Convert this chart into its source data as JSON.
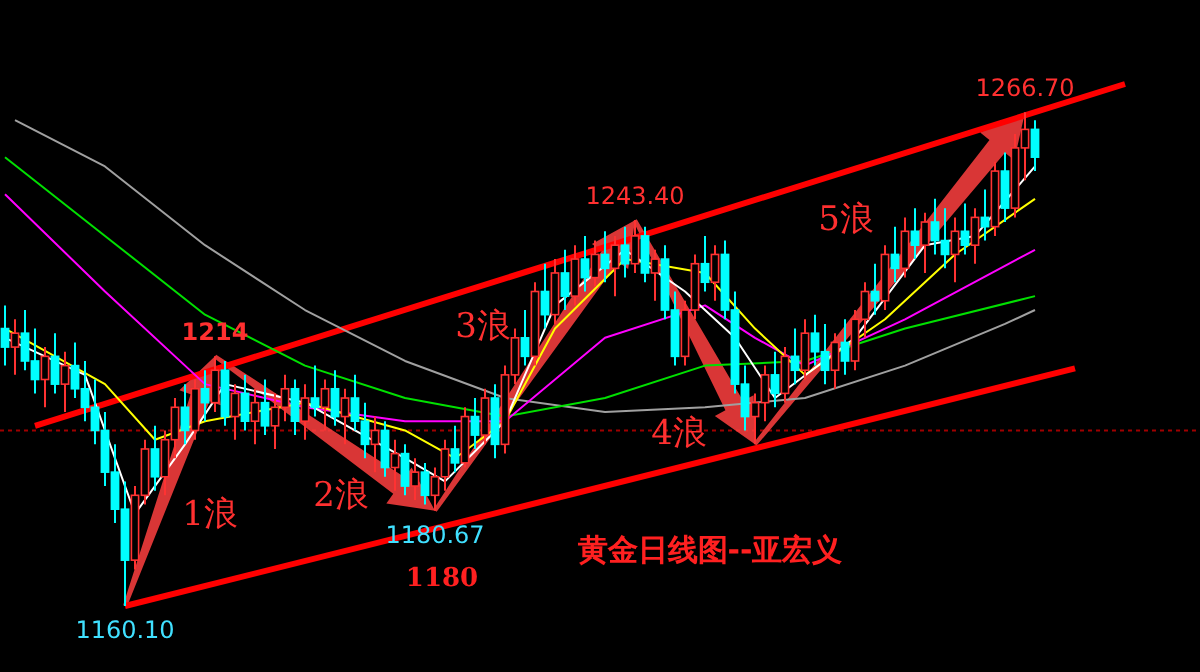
{
  "chart_data": {
    "type": "candlestick",
    "title": "黄金日线图--亚宏义",
    "categories": [
      null,
      null,
      null,
      null,
      null,
      null,
      null,
      null,
      null,
      null,
      null,
      null,
      null,
      null,
      null,
      null,
      null,
      null,
      null,
      null,
      null,
      null,
      null,
      null,
      null,
      null,
      null,
      null,
      null,
      null,
      null,
      null,
      null,
      null,
      null,
      null,
      null,
      null,
      null,
      null,
      null,
      null,
      null,
      null,
      null,
      null,
      null,
      null,
      null,
      null,
      null,
      null,
      null,
      null,
      null,
      null,
      null,
      null,
      null,
      null,
      null,
      null,
      null,
      null,
      null,
      null,
      null,
      null,
      null,
      null,
      null,
      null,
      null,
      null,
      null,
      null,
      null,
      null,
      null,
      null,
      null,
      null,
      null,
      null,
      null,
      null,
      null,
      null,
      null,
      null,
      null,
      null,
      null,
      null,
      null,
      null,
      null,
      null,
      null,
      null,
      null,
      null,
      null,
      null,
      null,
      null,
      null,
      null,
      null,
      null,
      null,
      null,
      null
    ],
    "colors": [
      "#00ffff",
      "#ff3232",
      "#00ffff",
      "#00ffff",
      "#ff3232",
      "#00ffff",
      "#ff3232",
      "#00ffff",
      "#00ffff",
      "#00ffff",
      "#00ffff",
      "#00ffff",
      "#00ffff",
      "#ff3232",
      "#ff3232",
      "#00ffff",
      "#ff3232",
      "#ff3232",
      "#00ffff",
      "#ff3232",
      "#00ffff",
      "#ff3232",
      "#00ffff",
      "#ff3232",
      "#00ffff",
      "#ff3232",
      "#00ffff",
      "#ff3232",
      "#ff3232",
      "#00ffff",
      "#ff3232",
      "#00ffff",
      "#ff3232",
      "#00ffff",
      "#ff3232",
      "#00ffff",
      "#00ffff",
      "#ff3232",
      "#00ffff",
      "#ff3232",
      "#00ffff",
      "#ff3232",
      "#00ffff",
      "#ff3232",
      "#ff3232",
      "#00ffff",
      "#ff3232",
      "#00ffff",
      "#ff3232",
      "#00ffff",
      "#ff3232",
      "#ff3232",
      "#00ffff",
      "#ff3232",
      "#00ffff",
      "#ff3232",
      "#00ffff",
      "#ff3232",
      "#00ffff",
      "#ff3232",
      "#00ffff",
      "#ff3232",
      "#00ffff",
      "#ff3232",
      "#00ffff",
      "#ff3232",
      "#00ffff",
      "#00ffff",
      "#ff3232",
      "#ff3232",
      "#00ffff",
      "#ff3232",
      "#00ffff",
      "#00ffff",
      "#00ffff",
      "#ff3232",
      "#ff3232",
      "#00ffff",
      "#ff3232",
      "#00ffff",
      "#ff3232",
      "#00ffff",
      "#00ffff",
      "#ff3232",
      "#00ffff",
      "#ff3232",
      "#ff3232",
      "#00ffff",
      "#ff3232",
      "#00ffff",
      "#ff3232",
      "#00ffff",
      "#ff3232",
      "#00ffff",
      "#00ffff",
      "#ff3232",
      "#00ffff",
      "#ff3232",
      "#00ffff",
      "#ff3232",
      "#00ffff",
      "#ff3232",
      "#ff3232",
      "#00ffff",
      null,
      null,
      null,
      null,
      null,
      null,
      null,
      null,
      null
    ],
    "ohlc": [
      [
        1220,
        1225,
        1212,
        1216
      ],
      [
        1216,
        1222,
        1210,
        1219
      ],
      [
        1219,
        1224,
        1211,
        1213
      ],
      [
        1213,
        1220,
        1206,
        1209
      ],
      [
        1209,
        1216,
        1203,
        1214
      ],
      [
        1214,
        1219,
        1206,
        1208
      ],
      [
        1208,
        1215,
        1202,
        1212
      ],
      [
        1212,
        1217,
        1205,
        1207
      ],
      [
        1207,
        1213,
        1200,
        1203
      ],
      [
        1203,
        1209,
        1195,
        1198
      ],
      [
        1198,
        1202,
        1186,
        1189
      ],
      [
        1189,
        1195,
        1178,
        1181
      ],
      [
        1181,
        1187,
        1160.1,
        1170
      ],
      [
        1170,
        1186,
        1168,
        1184
      ],
      [
        1184,
        1196,
        1182,
        1194
      ],
      [
        1194,
        1199,
        1185,
        1188
      ],
      [
        1188,
        1198,
        1184,
        1196
      ],
      [
        1196,
        1205,
        1192,
        1203
      ],
      [
        1203,
        1208,
        1195,
        1198
      ],
      [
        1198,
        1209,
        1196,
        1207
      ],
      [
        1207,
        1211,
        1200,
        1204
      ],
      [
        1204,
        1214,
        1202,
        1211
      ],
      [
        1211,
        1213,
        1199,
        1201
      ],
      [
        1201,
        1208,
        1196,
        1206
      ],
      [
        1206,
        1210,
        1198,
        1200
      ],
      [
        1200,
        1207,
        1195,
        1204
      ],
      [
        1204,
        1209,
        1197,
        1199
      ],
      [
        1199,
        1206,
        1194,
        1203
      ],
      [
        1203,
        1210,
        1200,
        1207
      ],
      [
        1207,
        1209,
        1197,
        1200
      ],
      [
        1200,
        1208,
        1196,
        1205
      ],
      [
        1205,
        1212,
        1201,
        1203
      ],
      [
        1203,
        1209,
        1198,
        1207
      ],
      [
        1207,
        1211,
        1199,
        1201
      ],
      [
        1201,
        1207,
        1195,
        1205
      ],
      [
        1205,
        1210,
        1198,
        1200
      ],
      [
        1200,
        1204,
        1192,
        1195
      ],
      [
        1195,
        1201,
        1189,
        1198
      ],
      [
        1198,
        1200,
        1188,
        1190
      ],
      [
        1190,
        1196,
        1185,
        1193
      ],
      [
        1193,
        1195,
        1184,
        1186
      ],
      [
        1186,
        1192,
        1183,
        1189
      ],
      [
        1189,
        1191,
        1182,
        1184
      ],
      [
        1184,
        1190,
        1180.67,
        1188
      ],
      [
        1188,
        1196,
        1185,
        1194
      ],
      [
        1194,
        1199,
        1189,
        1191
      ],
      [
        1191,
        1203,
        1190,
        1201
      ],
      [
        1201,
        1205,
        1194,
        1197
      ],
      [
        1197,
        1207,
        1195,
        1205
      ],
      [
        1205,
        1208,
        1192,
        1195
      ],
      [
        1195,
        1212,
        1193,
        1210
      ],
      [
        1210,
        1220,
        1208,
        1218
      ],
      [
        1218,
        1224,
        1212,
        1214
      ],
      [
        1214,
        1230,
        1212,
        1228
      ],
      [
        1228,
        1234,
        1220,
        1223
      ],
      [
        1223,
        1235,
        1221,
        1232
      ],
      [
        1232,
        1237,
        1224,
        1227
      ],
      [
        1227,
        1238,
        1225,
        1235
      ],
      [
        1235,
        1240,
        1228,
        1231
      ],
      [
        1231,
        1239,
        1229,
        1236
      ],
      [
        1236,
        1241,
        1230,
        1233
      ],
      [
        1233,
        1240,
        1227,
        1238
      ],
      [
        1238,
        1242,
        1231,
        1234
      ],
      [
        1234,
        1243.4,
        1232,
        1240
      ],
      [
        1240,
        1242,
        1230,
        1232
      ],
      [
        1232,
        1237,
        1226,
        1235
      ],
      [
        1235,
        1238,
        1222,
        1224
      ],
      [
        1224,
        1228,
        1212,
        1214
      ],
      [
        1214,
        1226,
        1212,
        1224
      ],
      [
        1224,
        1236,
        1222,
        1234
      ],
      [
        1234,
        1240,
        1228,
        1230
      ],
      [
        1230,
        1238,
        1226,
        1236
      ],
      [
        1236,
        1239,
        1222,
        1224
      ],
      [
        1224,
        1228,
        1206,
        1208
      ],
      [
        1208,
        1212,
        1198,
        1201
      ],
      [
        1201,
        1206,
        1195,
        1204
      ],
      [
        1204,
        1212,
        1200,
        1210
      ],
      [
        1210,
        1215,
        1203,
        1206
      ],
      [
        1206,
        1216,
        1204,
        1214
      ],
      [
        1214,
        1220,
        1208,
        1211
      ],
      [
        1211,
        1222,
        1209,
        1219
      ],
      [
        1219,
        1223,
        1212,
        1215
      ],
      [
        1215,
        1221,
        1208,
        1211
      ],
      [
        1211,
        1219,
        1207,
        1217
      ],
      [
        1217,
        1222,
        1210,
        1213
      ],
      [
        1213,
        1224,
        1211,
        1222
      ],
      [
        1222,
        1230,
        1218,
        1228
      ],
      [
        1228,
        1234,
        1223,
        1226
      ],
      [
        1226,
        1238,
        1224,
        1236
      ],
      [
        1236,
        1242,
        1230,
        1233
      ],
      [
        1233,
        1244,
        1231,
        1241
      ],
      [
        1241,
        1246,
        1235,
        1238
      ],
      [
        1238,
        1245,
        1232,
        1243
      ],
      [
        1243,
        1248,
        1236,
        1239
      ],
      [
        1239,
        1246,
        1233,
        1236
      ],
      [
        1236,
        1244,
        1230,
        1241
      ],
      [
        1241,
        1247,
        1236,
        1238
      ],
      [
        1238,
        1246,
        1234,
        1244
      ],
      [
        1244,
        1250,
        1239,
        1242
      ],
      [
        1242,
        1256,
        1240,
        1254
      ],
      [
        1254,
        1258,
        1243,
        1246
      ],
      [
        1246,
        1262,
        1244,
        1259
      ],
      [
        1259,
        1266.7,
        1252,
        1263
      ],
      [
        1263,
        1265,
        1254,
        1257
      ],
      null,
      null,
      null,
      null,
      null,
      null,
      null,
      null,
      null
    ],
    "series": [
      {
        "type": "line",
        "color": "#a0a0a0",
        "values": [
          null,
          1265,
          null,
          null,
          null,
          null,
          null,
          null,
          null,
          null,
          1255,
          null,
          null,
          null,
          null,
          null,
          null,
          null,
          null,
          null,
          1238,
          null,
          null,
          null,
          null,
          null,
          null,
          null,
          null,
          null,
          1224,
          null,
          null,
          null,
          null,
          null,
          null,
          null,
          null,
          null,
          1213,
          null,
          null,
          null,
          null,
          null,
          null,
          null,
          null,
          null,
          1205,
          null,
          null,
          null,
          null,
          null,
          null,
          null,
          null,
          null,
          1202,
          null,
          null,
          null,
          null,
          null,
          null,
          null,
          null,
          null,
          1203,
          null,
          null,
          null,
          null,
          null,
          null,
          null,
          null,
          null,
          1205,
          null,
          null,
          null,
          null,
          null,
          null,
          null,
          null,
          null,
          1212,
          null,
          null,
          null,
          null,
          null,
          null,
          null,
          null,
          null,
          1221,
          null,
          null,
          1224,
          null,
          null,
          null,
          null,
          null,
          null,
          null,
          null,
          null
        ]
      },
      {
        "type": "line",
        "color": "#00e000",
        "values": [
          1257,
          null,
          null,
          null,
          null,
          null,
          null,
          null,
          null,
          null,
          1240,
          null,
          null,
          null,
          null,
          null,
          null,
          null,
          null,
          null,
          1223,
          null,
          null,
          null,
          null,
          null,
          null,
          null,
          null,
          null,
          1212,
          null,
          null,
          null,
          null,
          null,
          null,
          null,
          null,
          null,
          1205,
          null,
          null,
          null,
          null,
          null,
          null,
          null,
          null,
          null,
          1201,
          null,
          null,
          null,
          null,
          null,
          null,
          null,
          null,
          null,
          1205,
          null,
          null,
          null,
          null,
          null,
          null,
          null,
          null,
          null,
          1212,
          null,
          null,
          null,
          null,
          null,
          null,
          null,
          null,
          null,
          1213,
          null,
          null,
          null,
          null,
          null,
          null,
          null,
          null,
          null,
          1220,
          null,
          null,
          null,
          null,
          null,
          null,
          null,
          null,
          null,
          null,
          null,
          null,
          1227,
          null,
          null,
          null,
          null,
          null,
          null,
          null,
          null,
          null
        ]
      },
      {
        "type": "line",
        "color": "#ff00ff",
        "values": [
          1249,
          null,
          null,
          null,
          null,
          null,
          null,
          null,
          null,
          null,
          1228,
          null,
          null,
          null,
          null,
          null,
          null,
          null,
          null,
          null,
          1208,
          null,
          null,
          null,
          null,
          null,
          null,
          null,
          null,
          null,
          1203,
          null,
          null,
          null,
          null,
          null,
          null,
          null,
          null,
          null,
          1200,
          null,
          null,
          null,
          null,
          null,
          null,
          null,
          null,
          null,
          1200,
          null,
          null,
          null,
          null,
          null,
          null,
          null,
          null,
          null,
          1218,
          null,
          null,
          null,
          null,
          null,
          null,
          null,
          null,
          null,
          1225,
          null,
          null,
          null,
          null,
          1218,
          null,
          null,
          null,
          null,
          1212,
          null,
          null,
          null,
          null,
          null,
          null,
          null,
          null,
          null,
          1222,
          null,
          null,
          null,
          null,
          null,
          null,
          null,
          null,
          null,
          null,
          null,
          null,
          1237,
          null,
          null,
          null,
          null,
          null,
          null,
          null,
          null,
          null
        ]
      },
      {
        "type": "line",
        "color": "#ffff00",
        "values": [
          1220,
          null,
          null,
          null,
          null,
          null,
          null,
          null,
          null,
          null,
          1208,
          null,
          null,
          null,
          null,
          1196,
          null,
          null,
          null,
          null,
          1200,
          null,
          null,
          null,
          null,
          null,
          null,
          null,
          null,
          null,
          1204,
          null,
          null,
          null,
          null,
          null,
          null,
          null,
          null,
          null,
          1198,
          null,
          null,
          null,
          null,
          1192,
          null,
          null,
          null,
          null,
          1200,
          null,
          null,
          null,
          null,
          1220,
          null,
          null,
          null,
          null,
          null,
          null,
          1235,
          null,
          null,
          null,
          null,
          null,
          null,
          null,
          1232,
          null,
          null,
          null,
          null,
          1220,
          null,
          null,
          null,
          null,
          1210,
          null,
          null,
          null,
          null,
          null,
          null,
          null,
          1222,
          null,
          null,
          null,
          null,
          null,
          null,
          1236,
          null,
          null,
          null,
          null,
          null,
          null,
          null,
          1248,
          null,
          null,
          null,
          null,
          null,
          null,
          null,
          null,
          null
        ]
      },
      {
        "type": "line",
        "color": "#ffffff",
        "values": [
          1218,
          null,
          null,
          null,
          null,
          null,
          null,
          null,
          1210,
          null,
          null,
          null,
          null,
          1180,
          null,
          null,
          null,
          null,
          1195,
          null,
          null,
          null,
          1208,
          null,
          null,
          null,
          null,
          null,
          null,
          null,
          1204,
          null,
          null,
          null,
          null,
          null,
          null,
          null,
          null,
          null,
          1192,
          null,
          null,
          null,
          1187,
          null,
          null,
          null,
          null,
          null,
          1200,
          null,
          null,
          null,
          null,
          1225,
          null,
          null,
          null,
          null,
          null,
          null,
          1237,
          null,
          null,
          null,
          null,
          null,
          1228,
          null,
          null,
          null,
          null,
          1218,
          null,
          null,
          null,
          1205,
          null,
          null,
          null,
          null,
          null,
          null,
          null,
          1218,
          null,
          null,
          null,
          null,
          null,
          null,
          1238,
          null,
          null,
          null,
          null,
          1240,
          null,
          null,
          null,
          null,
          null,
          1255,
          null,
          null,
          null,
          null,
          null,
          null,
          null,
          null,
          null
        ]
      },
      {
        "type": "line",
        "color": "#ff0000",
        "values": [
          null,
          null,
          null,
          1199,
          null,
          null,
          null,
          null,
          null,
          null,
          null,
          null,
          null,
          null,
          null,
          null,
          null,
          null,
          null,
          null,
          null,
          null,
          null,
          null,
          null,
          null,
          null,
          null,
          null,
          null,
          null,
          null,
          null,
          null,
          null,
          null,
          null,
          null,
          null,
          null,
          null,
          null,
          null,
          null,
          null,
          null,
          null,
          null,
          null,
          null,
          null,
          null,
          null,
          null,
          null,
          null,
          null,
          null,
          null,
          null,
          null,
          null,
          null,
          null,
          null,
          null,
          null,
          null,
          null,
          null,
          null,
          null,
          null,
          null,
          null,
          null,
          null,
          null,
          null,
          null,
          null,
          null,
          null,
          null,
          null,
          null,
          null,
          null,
          null,
          null,
          null,
          null,
          null,
          null,
          null,
          null,
          null,
          null,
          null,
          null,
          null,
          null,
          null,
          null,
          null,
          null,
          null,
          null,
          null,
          null,
          null,
          null,
          1272.8
        ]
      },
      {
        "type": "line",
        "color": "#ff0000",
        "values": [
          null,
          null,
          null,
          null,
          null,
          null,
          null,
          null,
          null,
          null,
          null,
          null,
          1160.1,
          null,
          null,
          null,
          null,
          null,
          null,
          null,
          null,
          null,
          null,
          null,
          null,
          null,
          null,
          null,
          null,
          null,
          null,
          null,
          null,
          null,
          null,
          null,
          null,
          null,
          null,
          null,
          null,
          null,
          null,
          null,
          null,
          null,
          null,
          null,
          null,
          null,
          null,
          null,
          null,
          null,
          null,
          null,
          null,
          null,
          null,
          null,
          null,
          null,
          null,
          null,
          null,
          null,
          null,
          null,
          null,
          null,
          null,
          null,
          null,
          null,
          null,
          null,
          null,
          null,
          null,
          null,
          null,
          null,
          null,
          null,
          null,
          null,
          null,
          null,
          null,
          null,
          null,
          null,
          null,
          null,
          null,
          null,
          null,
          null,
          null,
          null,
          null,
          null,
          null,
          null,
          null,
          null,
          null,
          1211.4,
          null,
          null,
          null,
          null,
          null
        ]
      }
    ],
    "ref_lines": [
      {
        "axis": "y",
        "value": 1198,
        "color": "#a00000",
        "line_style": "dotted"
      }
    ],
    "annotations": [
      {
        "text": "1160.10",
        "y": 1160.1
      },
      {
        "text": "1214",
        "y": 1214
      },
      {
        "text": "1180.67",
        "y": 1180.67
      },
      {
        "text": "1243.40",
        "y": 1243.4
      },
      {
        "text": "1266.70",
        "y": 1266.7
      },
      "1浪",
      "2浪",
      "3浪",
      "4浪",
      "5浪",
      "1180"
    ]
  }
}
